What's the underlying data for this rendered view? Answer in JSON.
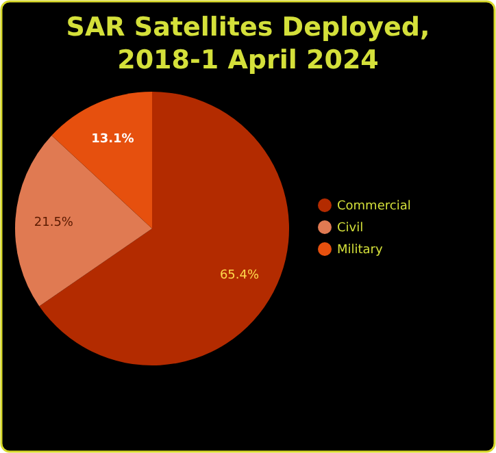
{
  "chart_data": {
    "type": "pie",
    "title": "SAR Satellites Deployed, 2018-1 April 2024",
    "categories": [
      "Commercial",
      "Civil",
      "Military"
    ],
    "values": [
      65.4,
      21.5,
      13.1
    ],
    "colors": [
      "#b32b00",
      "#e07a52",
      "#e6500e"
    ],
    "value_labels": [
      "65.4%",
      "21.5%",
      "13.1%"
    ],
    "legend": "right"
  }
}
